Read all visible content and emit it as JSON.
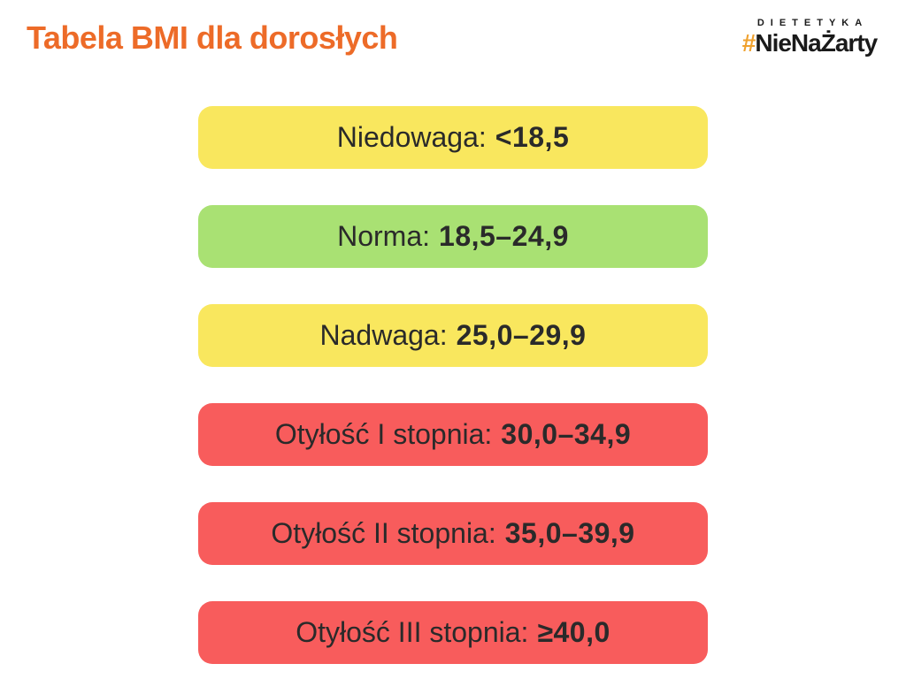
{
  "page": {
    "title": "Tabela BMI dla dorosłych"
  },
  "logo": {
    "tagline": "DIETETYKA",
    "hash": "#",
    "name": "NieNaŻarty"
  },
  "colors": {
    "title": "#ED6B28",
    "logo_hash": "#EFA12E",
    "logo_text": "#1a1a1a",
    "bar_text": "#2a2a2a",
    "yellow": "#F9E75E",
    "green": "#A9E173",
    "red": "#F85C5C",
    "background": "#FFFFFF"
  },
  "chart_data": {
    "type": "table",
    "title": "Tabela BMI dla dorosłych",
    "legend_position": "none",
    "grid": false,
    "rows": [
      {
        "label": "Niedowaga:",
        "value": "<18,5",
        "color": "#F9E75E",
        "range_min": null,
        "range_max": 18.5
      },
      {
        "label": "Norma:",
        "value": "18,5–24,9",
        "color": "#A9E173",
        "range_min": 18.5,
        "range_max": 24.9
      },
      {
        "label": "Nadwaga:",
        "value": "25,0–29,9",
        "color": "#F9E75E",
        "range_min": 25.0,
        "range_max": 29.9
      },
      {
        "label": "Otyłość I stopnia:",
        "value": "30,0–34,9",
        "color": "#F85C5C",
        "range_min": 30.0,
        "range_max": 34.9
      },
      {
        "label": "Otyłość II stopnia:",
        "value": "35,0–39,9",
        "color": "#F85C5C",
        "range_min": 35.0,
        "range_max": 39.9
      },
      {
        "label": "Otyłość III stopnia:",
        "value": "≥40,0",
        "color": "#F85C5C",
        "range_min": 40.0,
        "range_max": null
      }
    ]
  }
}
